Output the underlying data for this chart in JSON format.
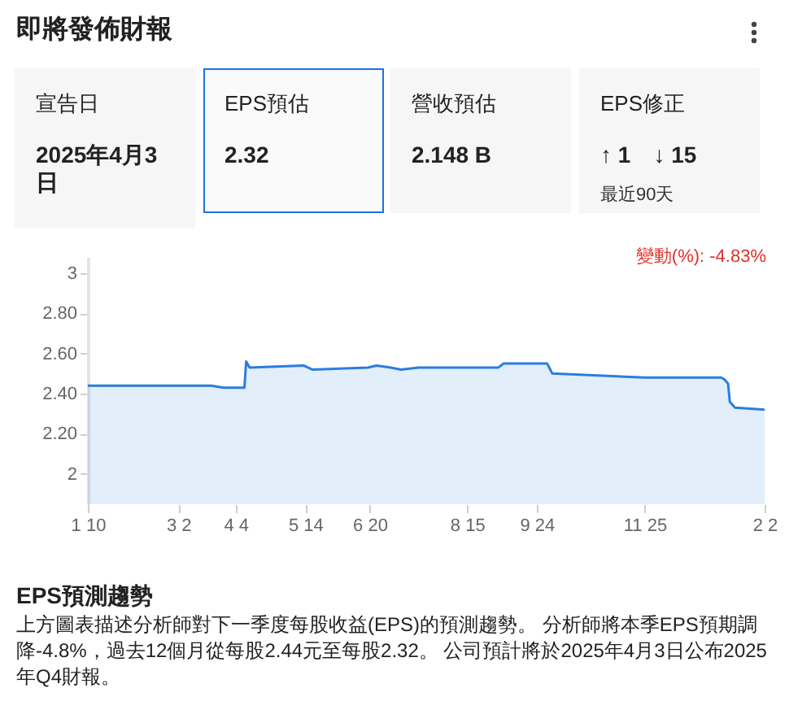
{
  "chart_data": [
    {
      "type": "other",
      "title": "即將發佈財報",
      "annotations": [
        "宣告日",
        "2025年4月3日",
        "EPS預估",
        "2.32",
        "營收預估",
        "2.148 B",
        "EPS修正",
        "↑ 1",
        "↓ 15",
        "最近90天"
      ]
    },
    {
      "type": "area",
      "title": "EPS預測趨勢",
      "annotations": [
        "變動(%): -4.83%",
        "上方圖表描述分析師對下一季度每股收益(EPS)的預測趨勢。 分析師將本季EPS預期調降-4.8%，過去12個月從每股2.44元至每股2.32。 公司預計將於2025年4月3日公布2025年Q4財報。"
      ],
      "x": [
        "2024-01-10",
        "2024-03-21",
        "2024-03-28",
        "2024-04-09",
        "2024-04-10",
        "2024-04-12",
        "2024-05-13",
        "2024-05-18",
        "2024-06-19",
        "2024-06-24",
        "2024-07-02",
        "2024-07-08",
        "2024-07-18",
        "2024-09-02",
        "2024-09-05",
        "2024-09-24",
        "2024-09-30",
        "2024-10-03",
        "2024-11-25",
        "2025-01-08",
        "2025-01-10",
        "2025-01-12",
        "2025-01-13",
        "2025-01-16",
        "2025-02-02"
      ],
      "series": [
        {
          "color": "#2a7de1",
          "values": [
            2.44,
            2.44,
            2.43,
            2.43,
            2.56,
            2.53,
            2.54,
            2.52,
            2.53,
            2.54,
            2.53,
            2.52,
            2.53,
            2.53,
            2.55,
            2.55,
            2.55,
            2.5,
            2.48,
            2.48,
            2.47,
            2.45,
            2.36,
            2.33,
            2.32
          ]
        }
      ],
      "xlim": [
        "2024-01-10",
        "2025-02-02"
      ],
      "xticks": [
        {
          "value": "2024-01-10",
          "label": "1 10"
        },
        {
          "value": "2024-03-02",
          "label": "3 2"
        },
        {
          "value": "2024-04-04",
          "label": "4 4"
        },
        {
          "value": "2024-05-14",
          "label": "5 14"
        },
        {
          "value": "2024-06-20",
          "label": "6 20"
        },
        {
          "value": "2024-08-15",
          "label": "8 15"
        },
        {
          "value": "2024-09-24",
          "label": "9 24"
        },
        {
          "value": "2024-11-25",
          "label": "11 25"
        },
        {
          "value": "2025-02-02",
          "label": "2 2"
        }
      ],
      "ylim": [
        1.85,
        3.08
      ],
      "yticks": [
        2,
        {
          "value": 2.2,
          "label": "2.20"
        },
        {
          "value": 2.4,
          "label": "2.40"
        },
        {
          "value": 2.6,
          "label": "2.60"
        },
        {
          "value": 2.8,
          "label": "2.80"
        },
        3
      ]
    }
  ]
}
